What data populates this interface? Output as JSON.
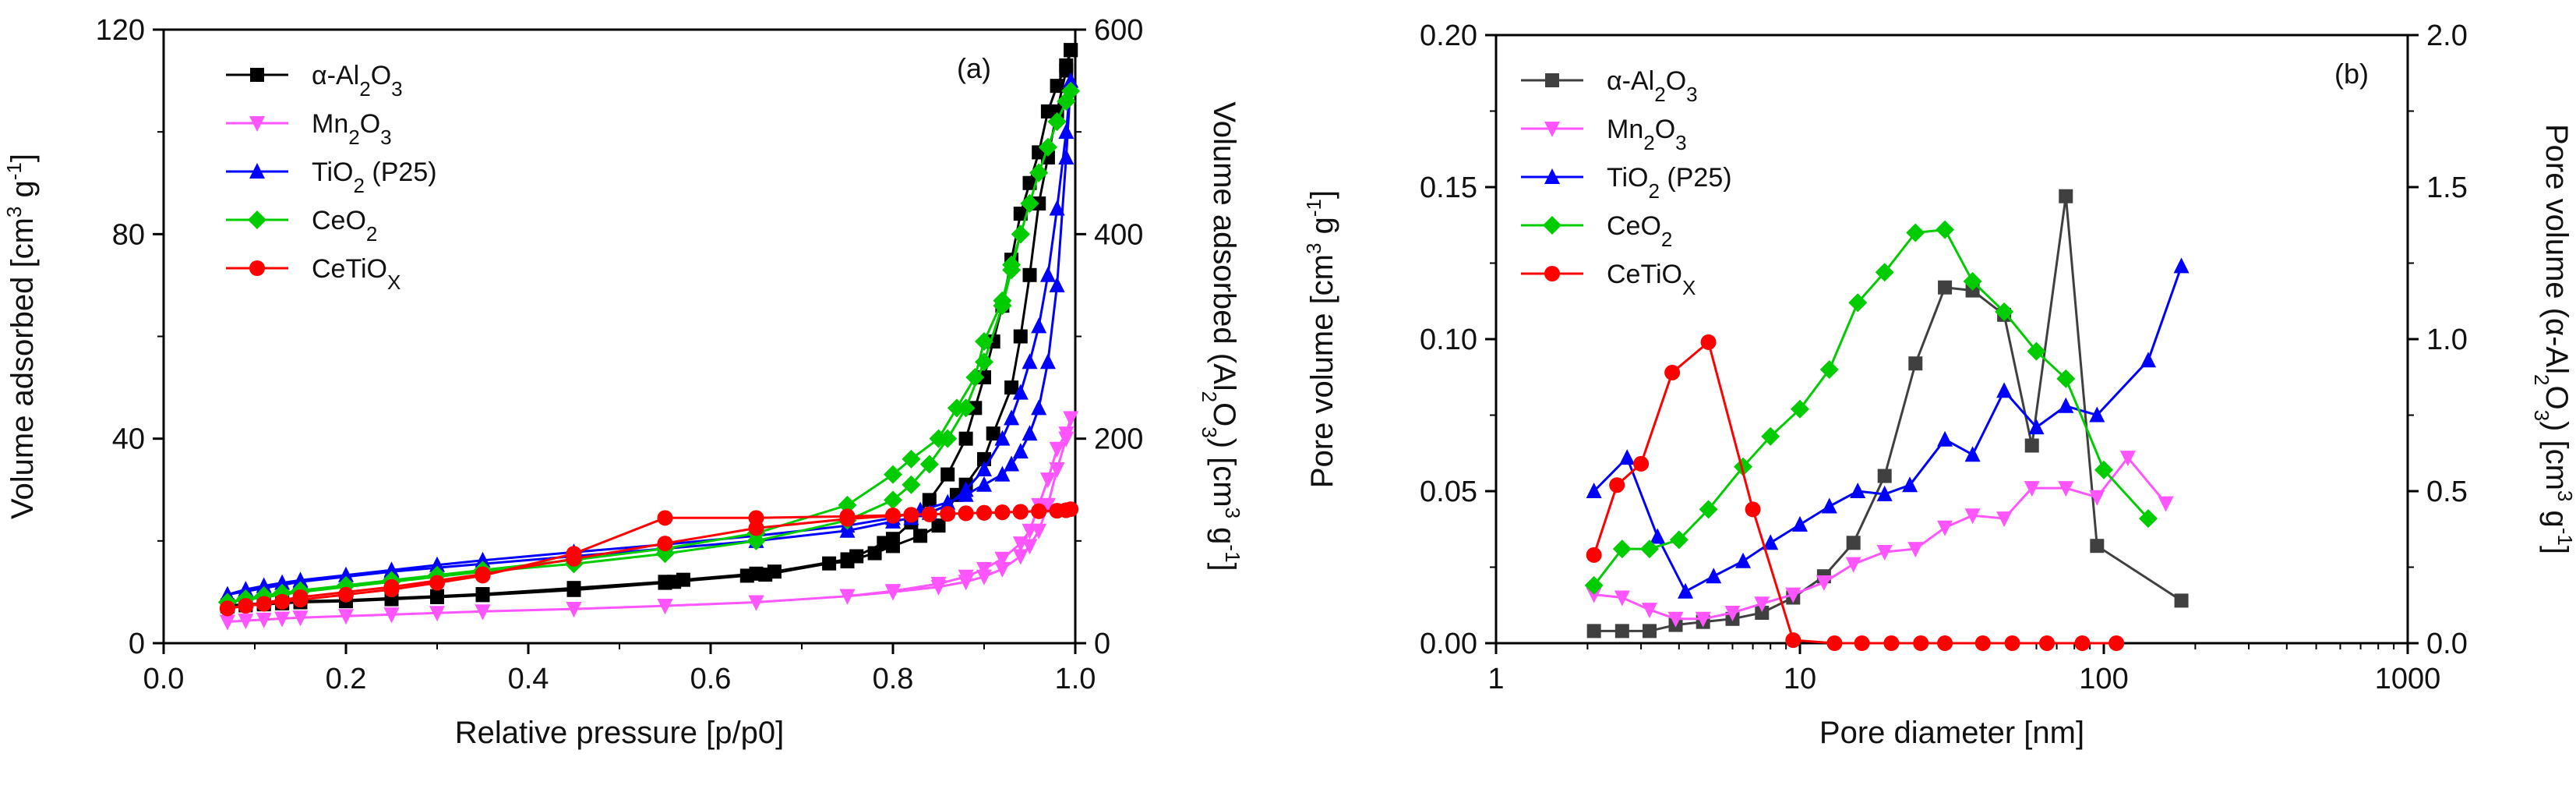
{
  "chart_data": [
    {
      "type": "line",
      "panel_label": "(a)",
      "xlabel": "Relative pressure [p/p0]",
      "ylabel_parts": [
        "Volume adsorbed [cm",
        "3",
        " g",
        "-1",
        "]"
      ],
      "y2label_parts": [
        "Volume adsorbed (Al",
        "2",
        "O",
        "3",
        ") [cm",
        "3",
        " g",
        "-1",
        "]"
      ],
      "xlim": [
        0.0,
        1.0
      ],
      "ylim": [
        0,
        120
      ],
      "y2lim": [
        0,
        600
      ],
      "xticks": [
        "0.0",
        "0.2",
        "0.4",
        "0.6",
        "0.8",
        "1.0"
      ],
      "yticks": [
        "0",
        "40",
        "80",
        "120"
      ],
      "y2ticks": [
        "0",
        "200",
        "400",
        "600"
      ],
      "legend_position": "top-left",
      "series": [
        {
          "name": "α-Al2O3",
          "label_parts": [
            "α-Al",
            "2",
            "O",
            "3"
          ],
          "color": "#000000",
          "marker": "square",
          "axis": "right",
          "x": [
            0.07,
            0.09,
            0.11,
            0.13,
            0.15,
            0.2,
            0.25,
            0.3,
            0.35,
            0.45,
            0.55,
            0.56,
            0.64,
            0.66,
            0.73,
            0.75,
            0.78,
            0.8,
            0.83,
            0.85,
            0.87,
            0.88,
            0.9,
            0.91,
            0.93,
            0.94,
            0.95,
            0.96,
            0.97,
            0.98,
            0.99,
            0.995,
            0.995,
            0.99,
            0.98,
            0.97,
            0.96,
            0.95,
            0.94,
            0.93,
            0.92,
            0.91,
            0.9,
            0.89,
            0.88,
            0.86,
            0.84,
            0.82,
            0.8,
            0.79,
            0.76,
            0.75,
            0.67,
            0.65,
            0.57,
            0.55,
            0.45,
            0.35,
            0.3,
            0.25,
            0.2,
            0.15,
            0.13,
            0.11,
            0.09,
            0.07
          ],
          "y": [
            36,
            37,
            38,
            39,
            40,
            41,
            43,
            45,
            47,
            52,
            59,
            60,
            66,
            67,
            78,
            80,
            88,
            95,
            105,
            115,
            145,
            155,
            180,
            205,
            250,
            300,
            360,
            430,
            475,
            520,
            560,
            580,
            580,
            565,
            545,
            520,
            480,
            450,
            420,
            375,
            330,
            295,
            260,
            230,
            200,
            165,
            140,
            118,
            102,
            98,
            85,
            82,
            70,
            68,
            62,
            60,
            54,
            48,
            46,
            44,
            42,
            41,
            40,
            39,
            38,
            37
          ]
        },
        {
          "name": "Mn2O3",
          "label_parts": [
            "Mn",
            "2",
            "O",
            "3"
          ],
          "color": "#ff55ff",
          "marker": "triangle-down",
          "axis": "left",
          "x": [
            0.07,
            0.09,
            0.11,
            0.13,
            0.15,
            0.2,
            0.25,
            0.3,
            0.35,
            0.45,
            0.55,
            0.65,
            0.75,
            0.8,
            0.85,
            0.88,
            0.9,
            0.92,
            0.94,
            0.95,
            0.96,
            0.97,
            0.98,
            0.99,
            0.995,
            0.99,
            0.98,
            0.97,
            0.96,
            0.95,
            0.94,
            0.92,
            0.9,
            0.88,
            0.85,
            0.8,
            0.75,
            0.65,
            0.55,
            0.45,
            0.35,
            0.25,
            0.15,
            0.07
          ],
          "y": [
            4.2,
            4.4,
            4.6,
            4.8,
            5.0,
            5.3,
            5.6,
            5.9,
            6.2,
            6.7,
            7.3,
            8.0,
            9.2,
            10.2,
            11.6,
            13,
            14.5,
            16.5,
            19.5,
            22,
            27,
            32,
            38,
            41,
            44,
            40,
            34,
            27,
            22,
            19,
            17,
            14.5,
            13,
            12,
            11,
            10,
            9.2,
            8.0,
            7.3,
            6.7,
            6.2,
            5.6,
            5.0,
            4.2
          ]
        },
        {
          "name": "TiO2 (P25)",
          "label_parts": [
            "TiO",
            "2",
            " (P25)"
          ],
          "color": "#0000ff",
          "marker": "triangle-up",
          "axis": "left",
          "x": [
            0.07,
            0.09,
            0.11,
            0.13,
            0.15,
            0.2,
            0.25,
            0.3,
            0.35,
            0.45,
            0.55,
            0.65,
            0.75,
            0.8,
            0.83,
            0.86,
            0.88,
            0.9,
            0.92,
            0.93,
            0.94,
            0.95,
            0.96,
            0.97,
            0.98,
            0.99,
            0.995,
            0.99,
            0.98,
            0.97,
            0.96,
            0.95,
            0.94,
            0.93,
            0.92,
            0.9,
            0.88,
            0.86,
            0.84,
            0.82,
            0.8,
            0.75,
            0.65,
            0.55,
            0.45,
            0.35,
            0.25,
            0.15,
            0.07
          ],
          "y": [
            9.5,
            10.5,
            11.2,
            11.8,
            12.3,
            13.3,
            14.3,
            15.3,
            16.2,
            17.8,
            19.3,
            21,
            23,
            24.5,
            26,
            27.5,
            29,
            31,
            33,
            35,
            37.5,
            41,
            46,
            55,
            70,
            95,
            110,
            100,
            85,
            72,
            62,
            55,
            49,
            44,
            40,
            34,
            30,
            27,
            25.5,
            24.5,
            23.8,
            22,
            20,
            18.5,
            17,
            15.5,
            14,
            12,
            9.5
          ]
        },
        {
          "name": "CeO2",
          "label_parts": [
            "CeO",
            "2"
          ],
          "color": "#00cc00",
          "marker": "diamond",
          "axis": "left",
          "x": [
            0.07,
            0.09,
            0.11,
            0.13,
            0.15,
            0.2,
            0.25,
            0.3,
            0.35,
            0.45,
            0.55,
            0.65,
            0.75,
            0.8,
            0.82,
            0.85,
            0.87,
            0.89,
            0.9,
            0.92,
            0.93,
            0.94,
            0.95,
            0.96,
            0.97,
            0.98,
            0.99,
            0.995,
            0.99,
            0.98,
            0.97,
            0.96,
            0.95,
            0.94,
            0.93,
            0.92,
            0.9,
            0.88,
            0.86,
            0.84,
            0.82,
            0.8,
            0.75,
            0.65,
            0.55,
            0.45,
            0.35,
            0.25,
            0.15,
            0.07
          ],
          "y": [
            8,
            8.7,
            9.3,
            9.8,
            10.3,
            11.3,
            12.3,
            13.3,
            14.3,
            16.3,
            18.5,
            21.5,
            27,
            33,
            36,
            40,
            46,
            52,
            59,
            67,
            74,
            80,
            86,
            92,
            97,
            102,
            106,
            108,
            106,
            102,
            97,
            92,
            86,
            80,
            73,
            66,
            55,
            46,
            40,
            35,
            31,
            28,
            24,
            20,
            17.5,
            15.5,
            14,
            12,
            10,
            8
          ]
        },
        {
          "name": "CeTiOX",
          "label_parts": [
            "CeTiO",
            "X"
          ],
          "color": "#ff0000",
          "marker": "circle",
          "axis": "left",
          "x": [
            0.07,
            0.09,
            0.11,
            0.13,
            0.15,
            0.2,
            0.25,
            0.3,
            0.35,
            0.45,
            0.55,
            0.65,
            0.75,
            0.8,
            0.82,
            0.84,
            0.86,
            0.88,
            0.9,
            0.92,
            0.94,
            0.96,
            0.98,
            0.99,
            0.995,
            0.99,
            0.98,
            0.96,
            0.94,
            0.92,
            0.9,
            0.88,
            0.86,
            0.84,
            0.82,
            0.8,
            0.75,
            0.65,
            0.55,
            0.45,
            0.35,
            0.25,
            0.15,
            0.07
          ],
          "y": [
            6.8,
            7.3,
            7.7,
            8.1,
            8.5,
            9.5,
            10.5,
            11.8,
            13.2,
            17.5,
            24.5,
            24.5,
            24.8,
            25,
            25.1,
            25.2,
            25.3,
            25.4,
            25.5,
            25.6,
            25.7,
            25.8,
            25.9,
            26,
            26.2,
            26,
            25.9,
            25.8,
            25.7,
            25.6,
            25.5,
            25.4,
            25.3,
            25.2,
            25.1,
            24.9,
            24.3,
            22.5,
            19.5,
            16.5,
            13.5,
            11,
            9,
            6.8
          ]
        }
      ]
    },
    {
      "type": "line",
      "panel_label": "(b)",
      "xscale": "log",
      "xlabel": "Pore diameter [nm]",
      "ylabel_parts": [
        "Pore volume [cm",
        "3",
        " g",
        "-1",
        "]"
      ],
      "y2label_parts": [
        "Pore volume (α-Al",
        "2",
        "O",
        "3",
        ") [cm",
        "3",
        " g",
        "-1",
        "]"
      ],
      "xlim": [
        1,
        1000
      ],
      "ylim": [
        0,
        0.2
      ],
      "y2lim": [
        0,
        2.0
      ],
      "xticks": [
        "1",
        "10",
        "100",
        "1000"
      ],
      "yticks": [
        "0.00",
        "0.05",
        "0.10",
        "0.15",
        "0.20"
      ],
      "y2ticks": [
        "0.0",
        "0.5",
        "1.0",
        "1.5",
        "2.0"
      ],
      "legend_position": "top-left",
      "series": [
        {
          "name": "α-Al2O3",
          "label_parts": [
            "α-Al",
            "2",
            "O",
            "3"
          ],
          "color": "#404040",
          "marker": "square",
          "axis": "right",
          "x": [
            2.1,
            2.6,
            3.2,
            3.9,
            4.8,
            6,
            7.5,
            9.5,
            12,
            15,
            19,
            24,
            30,
            37,
            47,
            58,
            75,
            95,
            180
          ],
          "y": [
            0.04,
            0.04,
            0.04,
            0.06,
            0.07,
            0.08,
            0.1,
            0.15,
            0.22,
            0.33,
            0.55,
            0.92,
            1.17,
            1.16,
            1.08,
            0.65,
            1.47,
            0.32,
            0.14
          ]
        },
        {
          "name": "Mn2O3",
          "label_parts": [
            "Mn",
            "2",
            "O",
            "3"
          ],
          "color": "#ff55ff",
          "marker": "triangle-down",
          "axis": "left",
          "x": [
            2.1,
            2.6,
            3.2,
            3.9,
            4.8,
            6,
            7.5,
            9.5,
            12,
            15,
            19,
            24,
            30,
            37,
            47,
            58,
            75,
            95,
            120,
            160
          ],
          "y": [
            0.016,
            0.015,
            0.011,
            0.008,
            0.008,
            0.01,
            0.013,
            0.016,
            0.02,
            0.026,
            0.03,
            0.031,
            0.038,
            0.042,
            0.041,
            0.051,
            0.051,
            0.048,
            0.061,
            0.046
          ]
        },
        {
          "name": "TiO2 (P25)",
          "label_parts": [
            "TiO",
            "2",
            " (P25)"
          ],
          "color": "#0000ff",
          "marker": "triangle-up",
          "axis": "left",
          "x": [
            2.1,
            2.7,
            3.4,
            4.2,
            5.2,
            6.5,
            8,
            10,
            12.5,
            15.5,
            19,
            23,
            30,
            37,
            47,
            60,
            75,
            95,
            140,
            180
          ],
          "y": [
            0.05,
            0.061,
            0.035,
            0.017,
            0.022,
            0.027,
            0.033,
            0.039,
            0.045,
            0.05,
            0.049,
            0.052,
            0.067,
            0.062,
            0.083,
            0.071,
            0.078,
            0.075,
            0.093,
            0.124
          ]
        },
        {
          "name": "CeO2",
          "label_parts": [
            "CeO",
            "2"
          ],
          "color": "#00cc00",
          "marker": "diamond",
          "axis": "left",
          "x": [
            2.1,
            2.6,
            3.2,
            4,
            5,
            6.5,
            8,
            10,
            12.5,
            15.5,
            19,
            24,
            30,
            37,
            47,
            60,
            75,
            100,
            140
          ],
          "y": [
            0.019,
            0.031,
            0.031,
            0.034,
            0.044,
            0.058,
            0.068,
            0.077,
            0.09,
            0.112,
            0.122,
            0.135,
            0.136,
            0.119,
            0.109,
            0.096,
            0.087,
            0.057,
            0.041
          ]
        },
        {
          "name": "CeTiOX",
          "label_parts": [
            "CeTiO",
            "X"
          ],
          "color": "#ff0000",
          "marker": "circle",
          "axis": "left",
          "x": [
            2.1,
            2.5,
            3,
            3.8,
            5,
            7,
            9.5,
            13,
            16,
            20,
            25,
            30,
            40,
            50,
            65,
            85,
            110
          ],
          "y": [
            0.029,
            0.052,
            0.059,
            0.089,
            0.099,
            0.044,
            0.001,
            0.0,
            0.0,
            0.0,
            0.0,
            0.0,
            0.0,
            0.0,
            0.0,
            0.0,
            0.0
          ]
        }
      ]
    }
  ]
}
